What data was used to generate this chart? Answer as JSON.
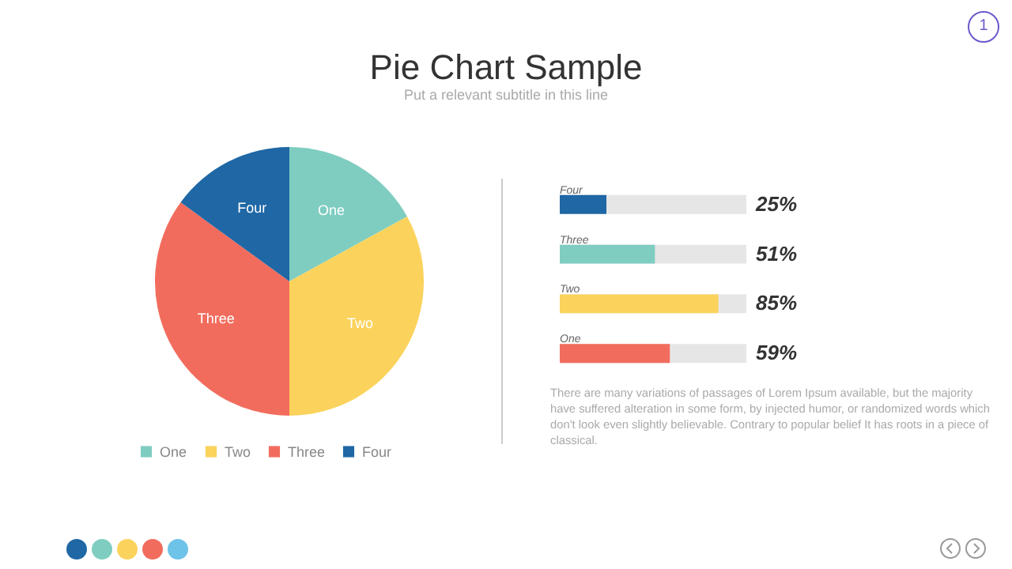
{
  "chart_data": [
    {
      "type": "pie",
      "title": "Pie Chart Sample",
      "subtitle": "Put a relevant subtitle in this line",
      "annotations": [
        "1"
      ],
      "categories": [
        "One",
        "Two",
        "Three",
        "Four"
      ],
      "values": [
        17,
        33,
        35,
        15
      ],
      "colors": [
        "#7fcdc1",
        "#fbd35c",
        "#f26c5d",
        "#1f67a5"
      ],
      "legend": "bottom"
    },
    {
      "type": "bar",
      "orientation": "horizontal",
      "categories": [
        "Four",
        "Three",
        "Two",
        "One"
      ],
      "values": [
        25,
        51,
        85,
        59
      ],
      "colors": [
        "#1f67a5",
        "#7fcdc1",
        "#fbd35c",
        "#f26c5d"
      ],
      "value_labels": [
        "25%",
        "51%",
        "85%",
        "59%"
      ],
      "xlim": [
        0,
        100
      ],
      "tick_labels": "y",
      "annotations": [
        "There are many variations of passages of Lorem Ipsum available, but the majority have suffered alteration in some form, by injected humor, or randomized words which don't look even slightly believable. Contrary to popular belief It has roots in a piece of classical."
      ]
    }
  ]
}
